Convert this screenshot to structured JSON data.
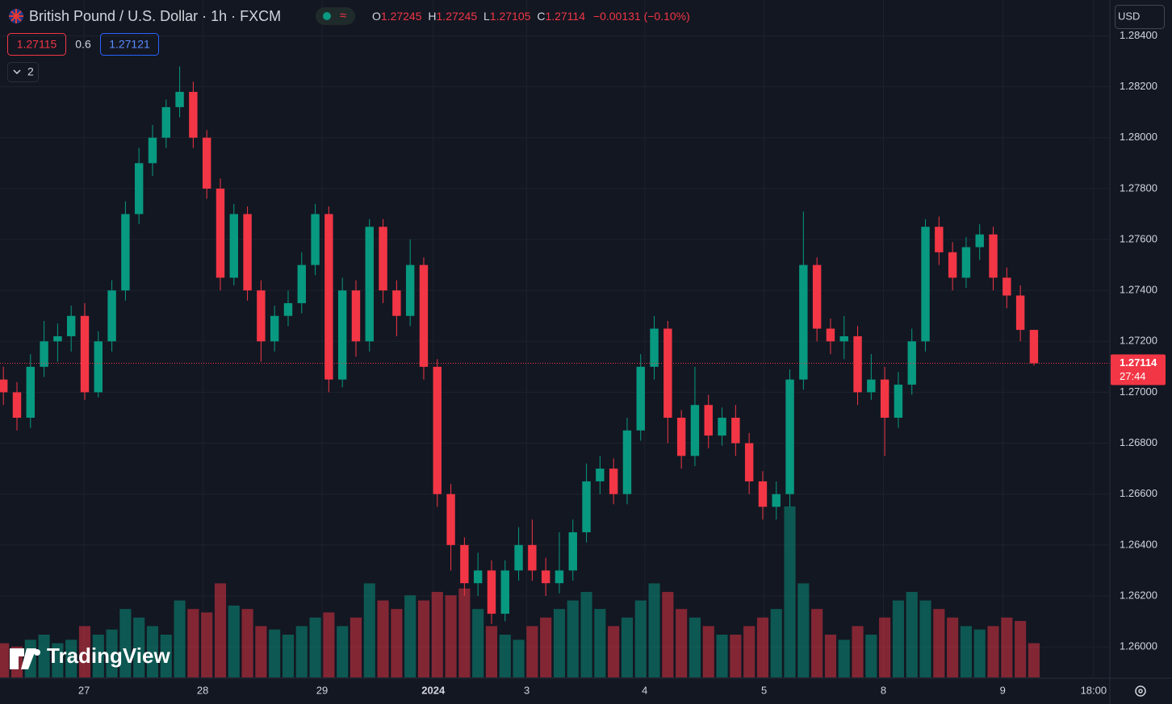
{
  "chart_data": {
    "type": "candlestick",
    "title": "British Pound / U.S. Dollar · 1h · FXCM",
    "ohlc": [
      {
        "label": "O",
        "value": 1.27245
      },
      {
        "label": "H",
        "value": 1.27245
      },
      {
        "label": "L",
        "value": 1.27105
      },
      {
        "label": "C",
        "value": 1.27114
      }
    ],
    "change": "−0.00131 (−0.10%)",
    "bid": 1.27115,
    "spread": 0.6,
    "ask": 1.27121,
    "indicators": "2",
    "currency": "USD",
    "last_price": 1.27114,
    "countdown": "27:44",
    "logo": "TradingView",
    "open": [
      1.2705,
      1.27,
      1.269,
      1.271,
      1.272,
      1.2722,
      1.273,
      1.27,
      1.272,
      1.274,
      1.277,
      1.279,
      1.28,
      1.2812,
      1.2818,
      1.28,
      1.278,
      1.2745,
      1.277,
      1.274,
      1.272,
      1.273,
      1.2735,
      1.275,
      1.277,
      1.2705,
      1.274,
      1.272,
      1.2765,
      1.274,
      1.273,
      1.275,
      1.271,
      1.266,
      1.264,
      1.2625,
      1.263,
      1.2613,
      1.263,
      1.264,
      1.263,
      1.2625,
      1.263,
      1.2645,
      1.2665,
      1.267,
      1.266,
      1.2685,
      1.271,
      1.2725,
      1.269,
      1.2675,
      1.2695,
      1.2683,
      1.269,
      1.268,
      1.2665,
      1.2655,
      1.266,
      1.2705,
      1.275,
      1.2725,
      1.272,
      1.2722,
      1.27,
      1.2705,
      1.269,
      1.2703,
      1.272,
      1.2765,
      1.2755,
      1.2745,
      1.2757,
      1.2762,
      1.2745,
      1.2738,
      1.27245
    ],
    "high": [
      1.271,
      1.2704,
      1.2715,
      1.2728,
      1.2727,
      1.2734,
      1.2735,
      1.2724,
      1.2744,
      1.2775,
      1.2796,
      1.2805,
      1.2815,
      1.2828,
      1.2822,
      1.2803,
      1.2784,
      1.2774,
      1.2773,
      1.2744,
      1.2734,
      1.274,
      1.2755,
      1.2774,
      1.2773,
      1.2745,
      1.2744,
      1.2768,
      1.2768,
      1.2744,
      1.276,
      1.2753,
      1.2713,
      1.2664,
      1.2643,
      1.2637,
      1.2634,
      1.2634,
      1.2647,
      1.265,
      1.2635,
      1.2645,
      1.265,
      1.2672,
      1.2675,
      1.2674,
      1.269,
      1.2715,
      1.273,
      1.2728,
      1.2693,
      1.271,
      1.2699,
      1.2694,
      1.2695,
      1.2684,
      1.2669,
      1.2665,
      1.2709,
      1.2771,
      1.2753,
      1.2729,
      1.273,
      1.2726,
      1.2715,
      1.271,
      1.2708,
      1.2725,
      1.2768,
      1.2769,
      1.2759,
      1.2761,
      1.2766,
      1.2765,
      1.2749,
      1.2742,
      1.27245
    ],
    "low": [
      1.2695,
      1.2685,
      1.2686,
      1.2706,
      1.2712,
      1.2716,
      1.2697,
      1.2698,
      1.2716,
      1.2736,
      1.2766,
      1.2785,
      1.2796,
      1.2808,
      1.2796,
      1.2776,
      1.274,
      1.2742,
      1.2736,
      1.2712,
      1.2716,
      1.2726,
      1.2731,
      1.2746,
      1.27,
      1.2702,
      1.2714,
      1.2716,
      1.2735,
      1.2722,
      1.2726,
      1.2705,
      1.2655,
      1.263,
      1.262,
      1.262,
      1.2609,
      1.261,
      1.2626,
      1.2626,
      1.262,
      1.2621,
      1.2626,
      1.2641,
      1.266,
      1.2656,
      1.2656,
      1.2681,
      1.2705,
      1.268,
      1.267,
      1.2671,
      1.2678,
      1.2679,
      1.2675,
      1.266,
      1.265,
      1.265,
      1.2655,
      1.2701,
      1.272,
      1.2715,
      1.2713,
      1.2695,
      1.2697,
      1.2675,
      1.2686,
      1.2699,
      1.2716,
      1.275,
      1.274,
      1.2741,
      1.2752,
      1.274,
      1.2733,
      1.272,
      1.27105
    ],
    "close": [
      1.27,
      1.269,
      1.271,
      1.272,
      1.2722,
      1.273,
      1.27,
      1.272,
      1.274,
      1.277,
      1.279,
      1.28,
      1.2812,
      1.2818,
      1.28,
      1.278,
      1.2745,
      1.277,
      1.274,
      1.272,
      1.273,
      1.2735,
      1.275,
      1.277,
      1.2705,
      1.274,
      1.272,
      1.2765,
      1.274,
      1.273,
      1.275,
      1.271,
      1.266,
      1.264,
      1.2625,
      1.263,
      1.2613,
      1.263,
      1.264,
      1.263,
      1.2625,
      1.263,
      1.2645,
      1.2665,
      1.267,
      1.266,
      1.2685,
      1.271,
      1.2725,
      1.269,
      1.2675,
      1.2695,
      1.2683,
      1.269,
      1.268,
      1.2665,
      1.2655,
      1.266,
      1.2705,
      1.275,
      1.2725,
      1.272,
      1.2722,
      1.27,
      1.2705,
      1.269,
      1.2703,
      1.272,
      1.2765,
      1.2755,
      1.2745,
      1.2757,
      1.2762,
      1.2745,
      1.2738,
      1.27245,
      1.27114
    ],
    "volume": [
      20,
      18,
      22,
      25,
      20,
      22,
      30,
      25,
      28,
      40,
      35,
      30,
      25,
      45,
      40,
      38,
      55,
      42,
      40,
      30,
      28,
      25,
      30,
      35,
      38,
      30,
      35,
      55,
      45,
      40,
      48,
      45,
      50,
      48,
      52,
      40,
      30,
      25,
      22,
      30,
      35,
      40,
      45,
      50,
      40,
      30,
      35,
      45,
      55,
      50,
      40,
      35,
      30,
      25,
      25,
      30,
      35,
      40,
      100,
      55,
      40,
      25,
      22,
      30,
      25,
      35,
      45,
      50,
      45,
      40,
      35,
      30,
      28,
      30,
      35,
      33,
      20
    ],
    "up_color": "#089981",
    "down_color": "#f23645",
    "xlim": [
      -0.25,
      81.6
    ],
    "xticks": [
      {
        "value": 5.95,
        "label": "27"
      },
      {
        "value": 14.7,
        "label": "28"
      },
      {
        "value": 23.5,
        "label": "29"
      },
      {
        "value": 31.7,
        "label": "2024"
      },
      {
        "value": 38.6,
        "label": "3"
      },
      {
        "value": 47.3,
        "label": "4"
      },
      {
        "value": 56.1,
        "label": "5"
      },
      {
        "value": 64.9,
        "label": "8"
      },
      {
        "value": 73.7,
        "label": "9"
      },
      {
        "value": 80.4,
        "label": "18:00"
      }
    ],
    "ylim": [
      1.2588,
      1.2843
    ],
    "yticks": [
      {
        "value": 1.26,
        "label": "1.26000"
      },
      {
        "value": 1.262,
        "label": "1.26200"
      },
      {
        "value": 1.264,
        "label": "1.26400"
      },
      {
        "value": 1.266,
        "label": "1.26600"
      },
      {
        "value": 1.268,
        "label": "1.26800"
      },
      {
        "value": 1.27,
        "label": "1.27000"
      },
      {
        "value": 1.272,
        "label": "1.27200"
      },
      {
        "value": 1.274,
        "label": "1.27400"
      },
      {
        "value": 1.276,
        "label": "1.27600"
      },
      {
        "value": 1.278,
        "label": "1.27800"
      },
      {
        "value": 1.28,
        "label": "1.28000"
      },
      {
        "value": 1.282,
        "label": "1.28200"
      },
      {
        "value": 1.284,
        "label": "1.28400"
      }
    ],
    "grid": true
  }
}
